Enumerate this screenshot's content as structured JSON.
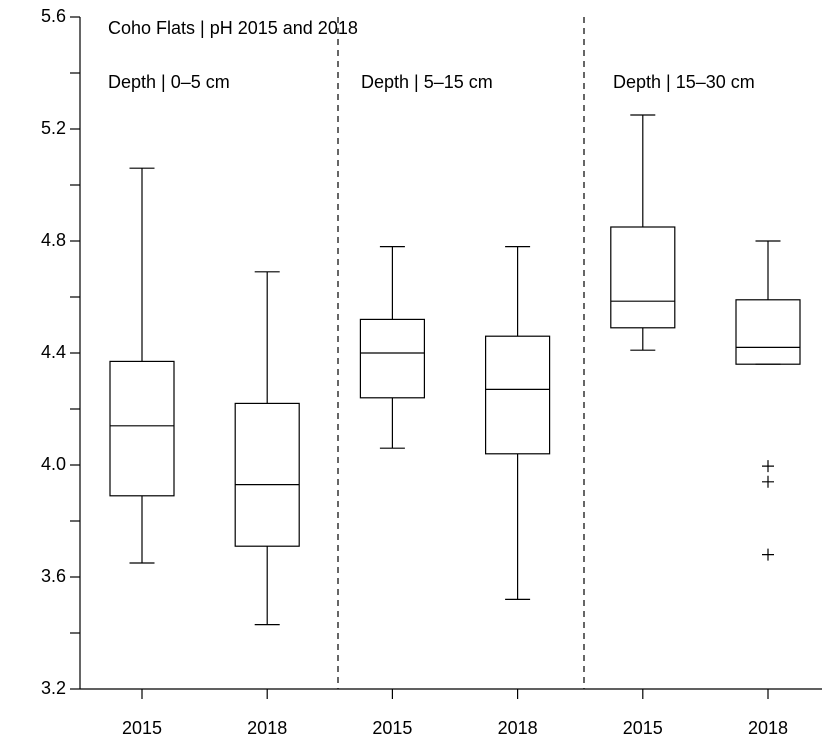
{
  "chart_data": {
    "type": "box",
    "title": "Coho Flats | pH 2015 and 2018",
    "panels": [
      "Depth | 0–5 cm",
      "Depth | 5–15 cm",
      "Depth | 15–30 cm"
    ],
    "boxes": [
      {
        "category": "2015",
        "whislo": 3.65,
        "q1": 3.89,
        "med": 4.14,
        "q3": 4.37,
        "whishi": 5.06,
        "fliers": []
      },
      {
        "category": "2018",
        "whislo": 3.43,
        "q1": 3.71,
        "med": 3.93,
        "q3": 4.22,
        "whishi": 4.69,
        "fliers": []
      },
      {
        "category": "2015",
        "whislo": 4.06,
        "q1": 4.24,
        "med": 4.4,
        "q3": 4.52,
        "whishi": 4.78,
        "fliers": []
      },
      {
        "category": "2018",
        "whislo": 3.52,
        "q1": 4.04,
        "med": 4.27,
        "q3": 4.46,
        "whishi": 4.78,
        "fliers": []
      },
      {
        "category": "2015",
        "whislo": 4.41,
        "q1": 4.49,
        "med": 4.585,
        "q3": 4.85,
        "whishi": 5.25,
        "fliers": []
      },
      {
        "category": "2018",
        "whislo": 4.36,
        "q1": 4.36,
        "med": 4.42,
        "q3": 4.59,
        "whishi": 4.8,
        "fliers": [
          3.996,
          3.94,
          3.68
        ]
      }
    ],
    "ylim": [
      3.2,
      5.6
    ],
    "yticks": [
      3.2,
      3.6,
      {
        "value": 4,
        "label": "4.0"
      },
      4.4,
      4.8,
      5.2,
      5.6
    ],
    "yminor_ticks": [
      3.4,
      3.8,
      4.2,
      4.6,
      5,
      5.4
    ],
    "color": "#000000"
  }
}
